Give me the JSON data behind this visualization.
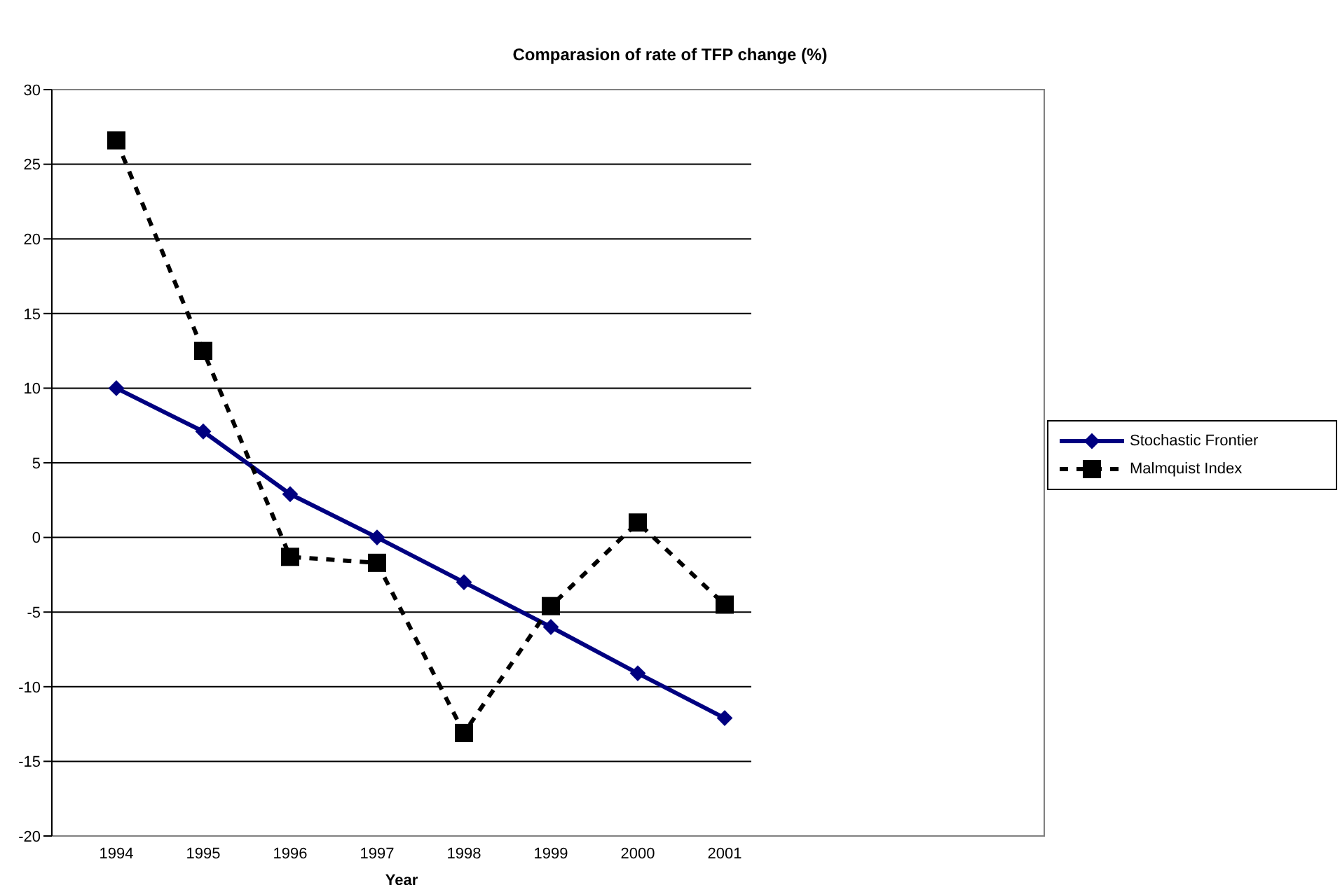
{
  "chart_data": {
    "type": "line",
    "title": "Comparasion of rate of TFP change (%)",
    "xlabel": "Year",
    "categories": [
      "1994",
      "1995",
      "1996",
      "1997",
      "1998",
      "1999",
      "2000",
      "2001"
    ],
    "series": [
      {
        "name": "Stochastic Frontier",
        "color": "#000080",
        "marker": "diamond",
        "line_style": "solid",
        "values": [
          10,
          7.1,
          2.9,
          0,
          -3,
          -6,
          -9.1,
          -12.1
        ]
      },
      {
        "name": "Malmquist Index",
        "color": "#000000",
        "marker": "square",
        "line_style": "dashed",
        "values": [
          26.6,
          12.5,
          -1.3,
          -1.7,
          -13.1,
          -4.6,
          1.0,
          -4.5
        ]
      }
    ],
    "ylim": [
      -20,
      30
    ],
    "yticks": [
      -20,
      -15,
      -10,
      -5,
      0,
      5,
      10,
      15,
      20,
      25,
      30
    ],
    "grid": "y",
    "legend": "right"
  }
}
